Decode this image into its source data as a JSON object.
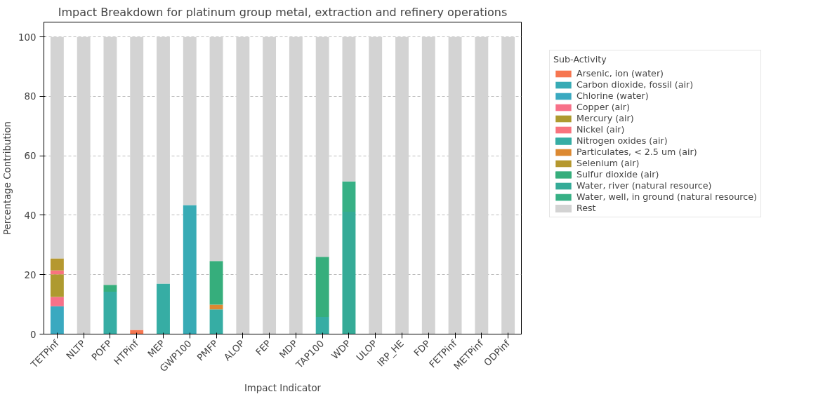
{
  "chart_data": {
    "type": "bar",
    "stacked": true,
    "title": "Impact Breakdown for platinum group metal, extraction and refinery operations",
    "xlabel": "Impact Indicator",
    "ylabel": "Percentage Contribution",
    "legend_title": "Sub-Activity",
    "legend": "right",
    "grid": "y",
    "categories": [
      "TETPinf",
      "NLTP",
      "POFP",
      "HTPinf",
      "MEP",
      "GWP100",
      "PMFP",
      "ALOP",
      "FEP",
      "MDP",
      "TAP100",
      "WDP",
      "ULOP",
      "IRP_HE",
      "FDP",
      "FETPinf",
      "METPinf",
      "ODPinf"
    ],
    "ylim": [
      0,
      105
    ],
    "yticks": [
      0,
      20,
      40,
      60,
      80,
      100
    ],
    "series": [
      {
        "name": "Arsenic, ion (water)",
        "color": "#f67650",
        "values": [
          null,
          null,
          null,
          1.4,
          null,
          null,
          null,
          null,
          null,
          null,
          null,
          null,
          null,
          null,
          null,
          null,
          null,
          null
        ]
      },
      {
        "name": "Carbon dioxide, fossil (air)",
        "color": "#38abb5",
        "values": [
          null,
          null,
          null,
          null,
          null,
          43.4,
          null,
          null,
          null,
          null,
          null,
          null,
          null,
          null,
          null,
          null,
          null,
          null
        ]
      },
      {
        "name": "Chlorine (water)",
        "color": "#3aa9c0",
        "values": [
          9.4,
          null,
          null,
          null,
          null,
          null,
          null,
          null,
          null,
          null,
          null,
          null,
          null,
          null,
          null,
          null,
          null,
          null
        ]
      },
      {
        "name": "Copper (air)",
        "color": "#f77189",
        "values": [
          3.1,
          null,
          null,
          null,
          null,
          null,
          null,
          null,
          null,
          null,
          null,
          null,
          null,
          null,
          null,
          null,
          null,
          null
        ]
      },
      {
        "name": "Mercury (air)",
        "color": "#ae9a2f",
        "values": [
          7.6,
          null,
          null,
          null,
          null,
          null,
          null,
          null,
          null,
          null,
          null,
          null,
          null,
          null,
          null,
          null,
          null,
          null
        ]
      },
      {
        "name": "Nickel (air)",
        "color": "#f8737e",
        "values": [
          1.3,
          null,
          null,
          null,
          null,
          null,
          null,
          null,
          null,
          null,
          null,
          null,
          null,
          null,
          null,
          null,
          null,
          null
        ]
      },
      {
        "name": "Nitrogen oxides (air)",
        "color": "#36ada4",
        "values": [
          null,
          null,
          14.3,
          null,
          17.0,
          null,
          8.3,
          null,
          null,
          null,
          5.8,
          null,
          null,
          null,
          null,
          null,
          null,
          null
        ]
      },
      {
        "name": "Particulates, < 2.5 um (air)",
        "color": "#dc8932",
        "values": [
          null,
          null,
          null,
          null,
          null,
          null,
          1.6,
          null,
          null,
          null,
          null,
          null,
          null,
          null,
          null,
          null,
          null,
          null
        ]
      },
      {
        "name": "Selenium (air)",
        "color": "#b5982f",
        "values": [
          4.1,
          null,
          null,
          null,
          null,
          null,
          null,
          null,
          null,
          null,
          null,
          null,
          null,
          null,
          null,
          null,
          null,
          null
        ]
      },
      {
        "name": "Sulfur dioxide (air)",
        "color": "#36ae7c",
        "values": [
          null,
          null,
          2.3,
          null,
          null,
          null,
          14.7,
          null,
          null,
          null,
          20.2,
          null,
          null,
          null,
          null,
          null,
          null,
          null
        ]
      },
      {
        "name": "Water, river (natural resource)",
        "color": "#35ab97",
        "values": [
          null,
          null,
          null,
          null,
          null,
          null,
          null,
          null,
          null,
          null,
          null,
          41.2,
          null,
          null,
          null,
          null,
          null,
          null
        ]
      },
      {
        "name": "Water, well, in ground (natural resource)",
        "color": "#37b085",
        "values": [
          null,
          null,
          null,
          null,
          null,
          null,
          null,
          null,
          null,
          null,
          null,
          10.2,
          null,
          null,
          null,
          null,
          null,
          null
        ]
      },
      {
        "name": "Rest",
        "color": "#d3d3d3",
        "values": [
          74.5,
          100,
          83.4,
          98.6,
          83.0,
          56.6,
          75.4,
          100,
          100,
          100,
          74.0,
          48.6,
          100,
          100,
          100,
          100,
          100,
          100
        ]
      }
    ]
  }
}
